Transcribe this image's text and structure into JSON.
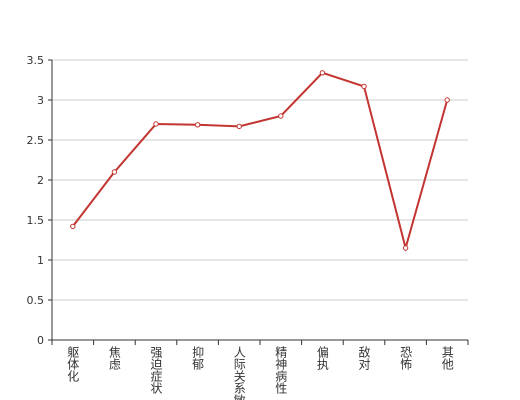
{
  "chart_data": {
    "type": "line",
    "categories": [
      "躯体化",
      "焦虑",
      "强迫症状",
      "抑郁",
      "人际关系敏感",
      "精神病性",
      "偏执",
      "敌对",
      "恐怖",
      "其他"
    ],
    "values": [
      1.42,
      2.1,
      2.7,
      2.69,
      2.67,
      2.8,
      3.34,
      3.17,
      1.15,
      3.0
    ],
    "color": "#c23531",
    "ylim": [
      0,
      3.5
    ],
    "yticks": [
      0,
      0.5,
      1,
      1.5,
      2,
      2.5,
      3,
      3.5
    ],
    "grid": true
  }
}
